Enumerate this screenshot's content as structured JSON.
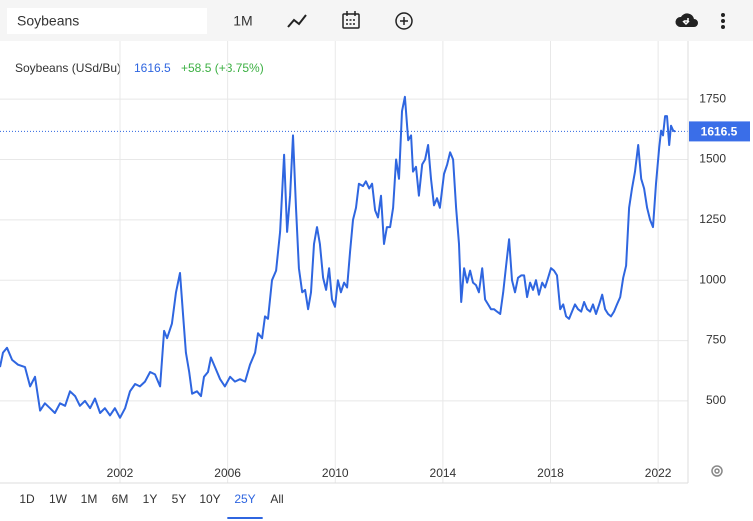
{
  "toolbar": {
    "search": "Soybeans",
    "interval": "1M"
  },
  "chart_data": {
    "type": "line",
    "series": [
      {
        "name": "Soybeans (USd/Bu)",
        "color": "#2f66e0",
        "x": [
          1997.54,
          1997.65,
          1997.8,
          1997.99,
          1998.21,
          1998.47,
          1998.66,
          1998.84,
          1999.03,
          1999.21,
          1999.4,
          1999.58,
          1999.77,
          1999.96,
          2000.14,
          2000.33,
          2000.51,
          2000.7,
          2000.89,
          2001.07,
          2001.26,
          2001.44,
          2001.63,
          2001.81,
          2002.0,
          2002.19,
          2002.37,
          2002.56,
          2002.74,
          2002.93,
          2003.12,
          2003.3,
          2003.49,
          2003.64,
          2003.75,
          2003.93,
          2004.08,
          2004.23,
          2004.34,
          2004.45,
          2004.57,
          2004.68,
          2004.86,
          2005.01,
          2005.12,
          2005.27,
          2005.38,
          2005.53,
          2005.72,
          2005.9,
          2006.09,
          2006.27,
          2006.46,
          2006.65,
          2006.83,
          2007.02,
          2007.13,
          2007.28,
          2007.39,
          2007.5,
          2007.65,
          2007.8,
          2007.95,
          2008.1,
          2008.21,
          2008.32,
          2008.43,
          2008.54,
          2008.65,
          2008.77,
          2008.88,
          2008.99,
          2009.1,
          2009.21,
          2009.32,
          2009.43,
          2009.55,
          2009.66,
          2009.77,
          2009.88,
          2009.99,
          2010.1,
          2010.21,
          2010.33,
          2010.44,
          2010.55,
          2010.66,
          2010.77,
          2010.88,
          2011.03,
          2011.14,
          2011.26,
          2011.37,
          2011.48,
          2011.59,
          2011.7,
          2011.81,
          2011.92,
          2012.04,
          2012.15,
          2012.26,
          2012.37,
          2012.48,
          2012.59,
          2012.71,
          2012.82,
          2012.89,
          2013.0,
          2013.11,
          2013.23,
          2013.34,
          2013.45,
          2013.56,
          2013.67,
          2013.78,
          2013.89,
          2014.04,
          2014.16,
          2014.27,
          2014.38,
          2014.49,
          2014.6,
          2014.68,
          2014.79,
          2014.9,
          2015.01,
          2015.12,
          2015.23,
          2015.34,
          2015.46,
          2015.57,
          2015.68,
          2015.79,
          2015.9,
          2016.01,
          2016.13,
          2016.24,
          2016.35,
          2016.46,
          2016.57,
          2016.68,
          2016.79,
          2016.91,
          2017.02,
          2017.13,
          2017.24,
          2017.35,
          2017.46,
          2017.57,
          2017.69,
          2017.8,
          2017.91,
          2018.02,
          2018.13,
          2018.24,
          2018.36,
          2018.47,
          2018.58,
          2018.69,
          2018.8,
          2018.91,
          2019.02,
          2019.14,
          2019.25,
          2019.36,
          2019.47,
          2019.58,
          2019.69,
          2019.81,
          2019.92,
          2020.03,
          2020.14,
          2020.25,
          2020.36,
          2020.47,
          2020.59,
          2020.7,
          2020.81,
          2020.92,
          2021.03,
          2021.14,
          2021.26,
          2021.37,
          2021.48,
          2021.59,
          2021.7,
          2021.81,
          2021.92,
          2022.04,
          2022.11,
          2022.18,
          2022.26,
          2022.33,
          2022.41,
          2022.48,
          2022.56,
          2022.63
        ],
        "values": [
          640,
          700,
          720,
          670,
          650,
          640,
          560,
          600,
          460,
          490,
          470,
          450,
          490,
          480,
          540,
          520,
          480,
          500,
          470,
          510,
          450,
          470,
          440,
          470,
          430,
          470,
          540,
          570,
          560,
          580,
          620,
          610,
          560,
          790,
          760,
          820,
          950,
          1030,
          860,
          700,
          620,
          530,
          540,
          520,
          600,
          620,
          680,
          640,
          590,
          560,
          600,
          580,
          590,
          580,
          650,
          700,
          780,
          760,
          850,
          840,
          1000,
          1040,
          1200,
          1520,
          1200,
          1350,
          1600,
          1300,
          1050,
          950,
          960,
          880,
          950,
          1150,
          1220,
          1150,
          1010,
          960,
          1050,
          920,
          890,
          1000,
          950,
          990,
          970,
          1120,
          1250,
          1300,
          1400,
          1390,
          1410,
          1380,
          1400,
          1290,
          1260,
          1350,
          1150,
          1220,
          1220,
          1300,
          1500,
          1420,
          1700,
          1760,
          1580,
          1600,
          1450,
          1470,
          1350,
          1480,
          1500,
          1560,
          1420,
          1310,
          1340,
          1300,
          1440,
          1480,
          1530,
          1500,
          1300,
          1150,
          910,
          1050,
          990,
          1040,
          990,
          980,
          950,
          1050,
          920,
          900,
          880,
          880,
          870,
          860,
          950,
          1060,
          1170,
          1000,
          950,
          1010,
          1020,
          1020,
          930,
          990,
          960,
          1000,
          940,
          990,
          970,
          1010,
          1050,
          1040,
          1020,
          880,
          900,
          850,
          840,
          870,
          900,
          880,
          870,
          910,
          880,
          870,
          900,
          860,
          900,
          940,
          880,
          860,
          850,
          870,
          900,
          930,
          1010,
          1060,
          1300,
          1380,
          1450,
          1560,
          1420,
          1380,
          1300,
          1250,
          1220,
          1400,
          1550,
          1620,
          1600,
          1680,
          1680,
          1560,
          1640,
          1620,
          1616.5
        ]
      }
    ],
    "last_value": 1616.5,
    "change": "+58.5 (+3.75%)",
    "xlim": [
      1997.54,
      2023.11
    ],
    "xticks": [
      2002,
      2006,
      2010,
      2014,
      2018,
      2022
    ],
    "ylim": [
      160,
      1991
    ],
    "yticks": [
      500,
      750,
      1000,
      1250,
      1500,
      1750
    ],
    "grid": true
  },
  "ranges": [
    "1D",
    "1W",
    "1M",
    "6M",
    "1Y",
    "5Y",
    "10Y",
    "25Y",
    "All"
  ],
  "selected_range": "25Y"
}
